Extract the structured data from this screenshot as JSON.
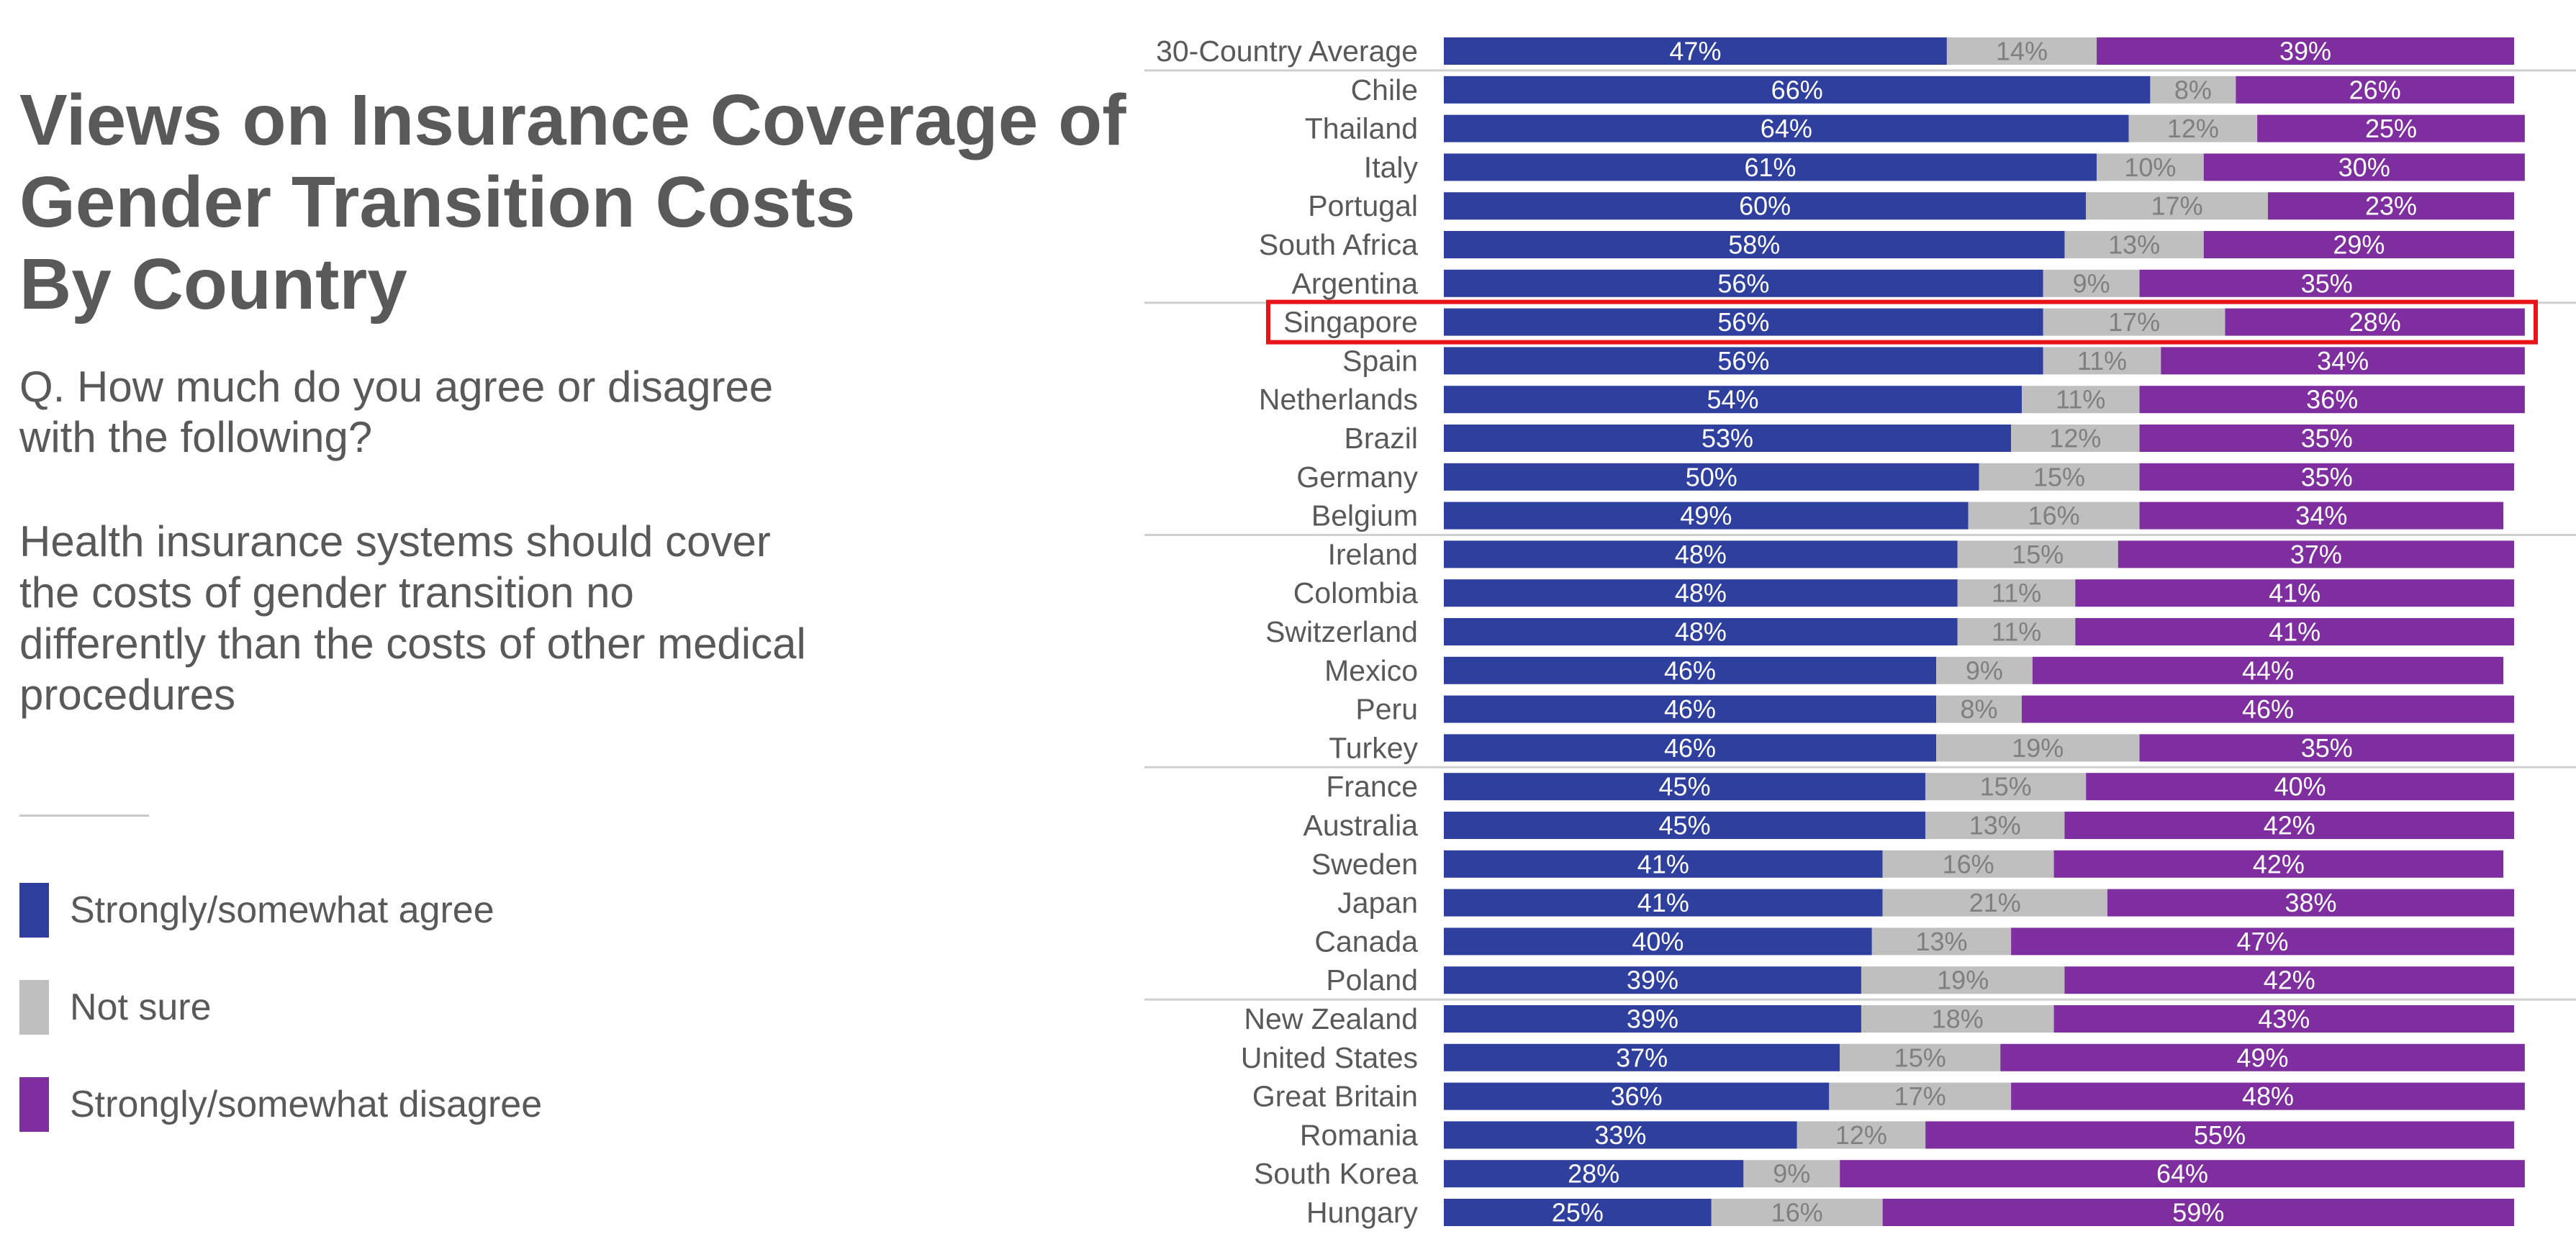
{
  "title": "Views on Insurance Coverage of\nGender Transition Costs\nBy Country",
  "question": "Q. How much do you agree or disagree\nwith the following?",
  "statement": "Health insurance systems should cover the costs of gender transition no differently than the costs of other medical procedures",
  "legend": [
    {
      "label": "Strongly/somewhat agree",
      "color": "#2e3f9e"
    },
    {
      "label": "Not sure",
      "color": "#bfbfbf"
    },
    {
      "label": "Strongly/somewhat disagree",
      "color": "#7f2e9f"
    }
  ],
  "highlight": {
    "category": "Singapore",
    "color": "#e8141a"
  },
  "chart_data": {
    "type": "bar",
    "orientation": "horizontal",
    "stacked": true,
    "categories": [
      "30-Country Average",
      "Chile",
      "Thailand",
      "Italy",
      "Portugal",
      "South Africa",
      "Argentina",
      "Singapore",
      "Spain",
      "Netherlands",
      "Brazil",
      "Germany",
      "Belgium",
      "Ireland",
      "Colombia",
      "Switzerland",
      "Mexico",
      "Peru",
      "Turkey",
      "France",
      "Australia",
      "Sweden",
      "Japan",
      "Canada",
      "Poland",
      "New Zealand",
      "United States",
      "Great Britain",
      "Romania",
      "South Korea",
      "Hungary"
    ],
    "series": [
      {
        "name": "Strongly/somewhat agree",
        "color": "#2e3f9e",
        "label_color": "#ffffff",
        "values": [
          47,
          66,
          64,
          61,
          60,
          58,
          56,
          56,
          56,
          54,
          53,
          50,
          49,
          48,
          48,
          48,
          46,
          46,
          46,
          45,
          45,
          41,
          41,
          40,
          39,
          39,
          37,
          36,
          33,
          28,
          25
        ]
      },
      {
        "name": "Not sure",
        "color": "#bfbfbf",
        "label_color": "#7f7f7f",
        "values": [
          14,
          8,
          12,
          10,
          17,
          13,
          9,
          17,
          11,
          11,
          12,
          15,
          16,
          15,
          11,
          11,
          9,
          8,
          19,
          15,
          13,
          16,
          21,
          13,
          19,
          18,
          15,
          17,
          12,
          9,
          16
        ]
      },
      {
        "name": "Strongly/somewhat disagree",
        "color": "#7f2e9f",
        "label_color": "#ffffff",
        "values": [
          39,
          26,
          25,
          30,
          23,
          29,
          35,
          28,
          34,
          36,
          35,
          35,
          34,
          37,
          41,
          41,
          44,
          46,
          35,
          40,
          42,
          42,
          38,
          47,
          42,
          43,
          49,
          48,
          55,
          64,
          59
        ]
      }
    ],
    "value_suffix": "%",
    "xlim": [
      0,
      100
    ],
    "group_separators_after": [
      "30-Country Average",
      "Argentina",
      "Belgium",
      "Turkey",
      "Poland"
    ],
    "legend_position": "left",
    "grid": false
  }
}
